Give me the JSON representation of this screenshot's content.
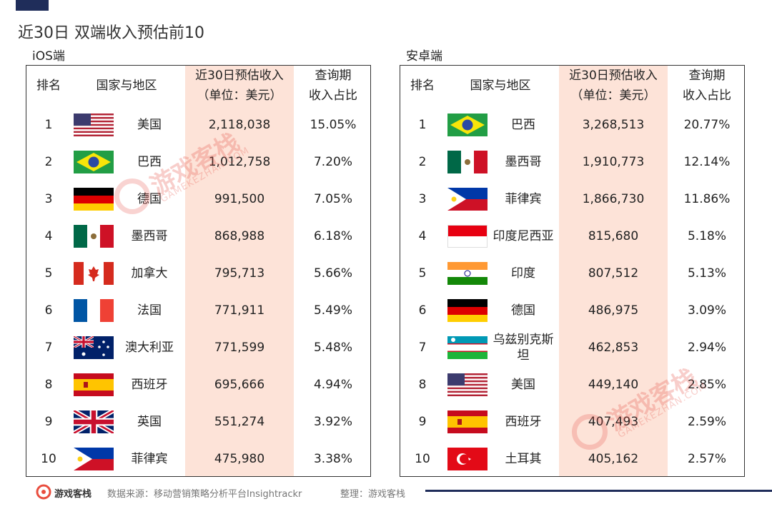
{
  "title": "近30日  双端收入预估前10",
  "tables": [
    {
      "label": "iOS端",
      "header": {
        "rank": "排名",
        "region": "国家与地区",
        "revenue": [
          "近30日预估收入",
          "（单位：美元）"
        ],
        "share": [
          "查询期",
          "收入占比"
        ]
      },
      "rows": [
        [
          "1",
          "美国",
          "2,118,038",
          "15.05%"
        ],
        [
          "2",
          "巴西",
          "1,012,758",
          "7.20%"
        ],
        [
          "3",
          "德国",
          "991,500",
          "7.05%"
        ],
        [
          "4",
          "墨西哥",
          "868,988",
          "6.18%"
        ],
        [
          "5",
          "加拿大",
          "795,713",
          "5.66%"
        ],
        [
          "6",
          "法国",
          "771,911",
          "5.49%"
        ],
        [
          "7",
          "澳大利亚",
          "771,599",
          "5.48%"
        ],
        [
          "8",
          "西班牙",
          "695,666",
          "4.94%"
        ],
        [
          "9",
          "英国",
          "551,274",
          "3.92%"
        ],
        [
          "10",
          "菲律宾",
          "475,980",
          "3.38%"
        ]
      ]
    },
    {
      "label": "安卓端",
      "header": {
        "rank": "排名",
        "region": "国家与地区",
        "revenue": [
          "近30日预估收入",
          "（单位：美元）"
        ],
        "share": [
          "查询期",
          "收入占比"
        ]
      },
      "rows": [
        [
          "1",
          "巴西",
          "3,268,513",
          "20.77%"
        ],
        [
          "2",
          "墨西哥",
          "1,910,773",
          "12.14%"
        ],
        [
          "3",
          "菲律宾",
          "1,866,730",
          "11.86%"
        ],
        [
          "4",
          "印度尼西亚",
          "815,680",
          "5.18%"
        ],
        [
          "5",
          "印度",
          "807,512",
          "5.13%"
        ],
        [
          "6",
          "德国",
          "486,975",
          "3.09%"
        ],
        [
          "7",
          "乌兹别克斯坦",
          "462,853",
          "2.94%"
        ],
        [
          "8",
          "美国",
          "449,140",
          "2.85%"
        ],
        [
          "9",
          "西班牙",
          "407,493",
          "2.59%"
        ],
        [
          "10",
          "土耳其",
          "405,162",
          "2.57%"
        ]
      ]
    }
  ],
  "watermark": [
    "游戏客栈",
    "GAMEKEZHAN.COM"
  ],
  "footer": {
    "logo": "游戏客栈",
    "source": "数据来源：移动营销策略分析平台Insightrackr",
    "editor": "整理：游戏客栈"
  }
}
